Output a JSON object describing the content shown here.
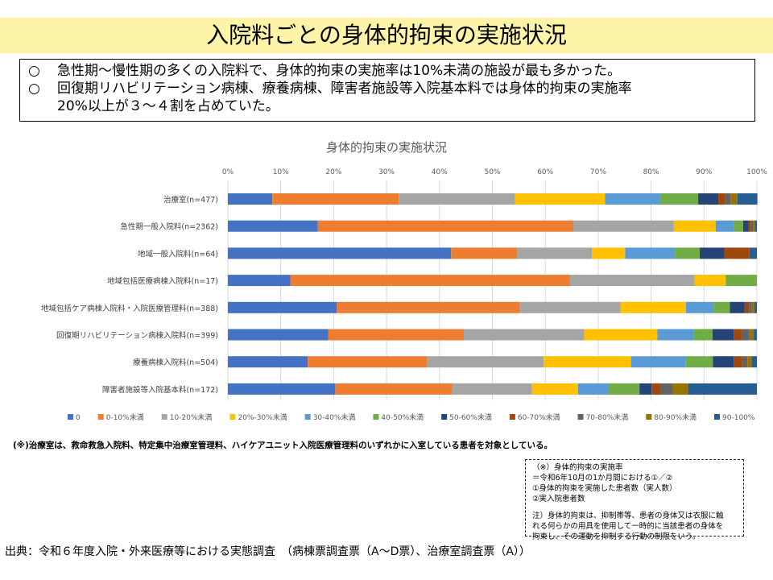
{
  "header": {
    "title": "入院料ごとの身体的拘束の実施状況"
  },
  "summary": {
    "bullet": "○",
    "line1": "急性期～慢性期の多くの入院料で、身体的拘束の実施率は10%未満の施設が最も多かった。",
    "line2": "回復期リハビリテーション病棟、療養病棟、障害者施設等入院基本料では身体的拘束の実施率",
    "line3": "20%以上が３～４割を占めていた。"
  },
  "chart_data": {
    "type": "bar",
    "orientation": "horizontal",
    "stacked": "percent",
    "title": "身体的拘束の実施状況",
    "xlim": [
      0,
      100
    ],
    "xticks": [
      "0%",
      "10%",
      "20%",
      "30%",
      "40%",
      "50%",
      "60%",
      "70%",
      "80%",
      "90%",
      "100%"
    ],
    "legend_position": "bottom",
    "categories": [
      "治療室(n=477)",
      "急性期一般入院料(n=2362)",
      "地域一般入院料(n=64)",
      "地域包括医療病棟入院料(n=17)",
      "地域包括ケア病棟入院料・入院医療管理料(n=388)",
      "回復期リハビリテーション病棟入院料(n=399)",
      "療養病棟入院料(n=504)",
      "障害者施設等入院基本料(n=172)"
    ],
    "series": [
      {
        "name": "0",
        "color": "#4472c4",
        "values": [
          8.4,
          17.0,
          42.2,
          11.8,
          20.6,
          19.0,
          15.1,
          20.3
        ]
      },
      {
        "name": "0-10%未満",
        "color": "#ed7d31",
        "values": [
          23.9,
          48.3,
          12.5,
          52.9,
          34.5,
          25.6,
          22.6,
          22.1
        ]
      },
      {
        "name": "10-20%未満",
        "color": "#a5a5a5",
        "values": [
          22.0,
          19.0,
          14.1,
          23.5,
          19.1,
          22.8,
          22.0,
          15.1
        ]
      },
      {
        "name": "20%-30%未満",
        "color": "#ffc000",
        "values": [
          17.0,
          7.9,
          6.3,
          5.9,
          12.4,
          13.8,
          16.5,
          8.7
        ]
      },
      {
        "name": "30-40%未満",
        "color": "#5b9bd5",
        "values": [
          10.5,
          3.4,
          9.4,
          0.0,
          5.2,
          6.9,
          10.3,
          5.8
        ]
      },
      {
        "name": "40-50%未満",
        "color": "#70ad47",
        "values": [
          7.1,
          1.8,
          4.7,
          5.9,
          3.1,
          3.5,
          5.2,
          5.8
        ]
      },
      {
        "name": "50-60%未満",
        "color": "#264478",
        "values": [
          3.8,
          1.0,
          4.7,
          0.0,
          2.8,
          4.0,
          3.9,
          2.3
        ]
      },
      {
        "name": "60-70%未満",
        "color": "#9e480e",
        "values": [
          1.3,
          0.5,
          4.7,
          0.0,
          0.8,
          1.5,
          1.6,
          1.7
        ]
      },
      {
        "name": "70-80%未満",
        "color": "#636363",
        "values": [
          1.0,
          0.4,
          0.0,
          0.0,
          0.5,
          1.5,
          1.0,
          2.3
        ]
      },
      {
        "name": "80-90%未満",
        "color": "#997300",
        "values": [
          1.3,
          0.3,
          0.0,
          0.0,
          0.5,
          0.8,
          0.8,
          2.9
        ]
      },
      {
        "name": "90-100%",
        "color": "#255e91",
        "values": [
          3.8,
          0.4,
          1.4,
          0.0,
          0.5,
          0.6,
          1.0,
          13.0
        ]
      }
    ]
  },
  "footnote": "(※)治療室は、救命救急入院料、特定集中治療室管理料、ハイケアユニット入院医療管理料のいずれかに入室している患者を対象としている。",
  "definition_box": {
    "line1": "（※）身体的拘束の実施率",
    "line2": "＝令和6年10月の1か月間における①／②",
    "line3": "①身体的拘束を実施した患者数（実人数）",
    "line4": "②実入院患者数",
    "line5": "注）身体的拘束は、抑制帯等、患者の身体又は衣服に触",
    "line6": "れる何らかの用具を使用して一時的に当該患者の身体を",
    "line7": "拘束し、その運動を抑制する行動の制限をいう。"
  },
  "source": "出典：令和６年度入院・外来医療等における実態調査　（病棟票調査票（A～D票）、治療室調査票（A））"
}
